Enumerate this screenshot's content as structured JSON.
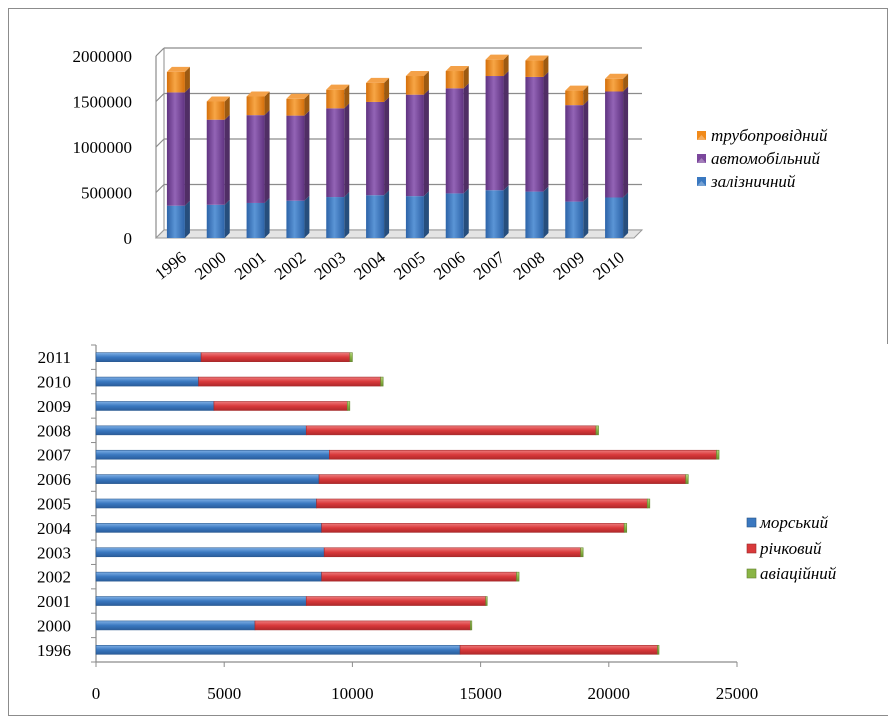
{
  "chart_data": [
    {
      "type": "bar",
      "orientation": "vertical",
      "stacked": true,
      "style": "3d",
      "categories": [
        "1996",
        "2000",
        "2001",
        "2002",
        "2003",
        "2004",
        "2005",
        "2006",
        "2007",
        "2008",
        "2009",
        "2010"
      ],
      "series": [
        {
          "name": "залізничний",
          "color": "#3a78c0",
          "values": [
            355000,
            365000,
            385000,
            410000,
            450000,
            470000,
            460000,
            490000,
            525000,
            510000,
            400000,
            445000
          ]
        },
        {
          "name": "автомобільний",
          "color": "#7b479c",
          "values": [
            1245000,
            935000,
            965000,
            935000,
            975000,
            1025000,
            1115000,
            1155000,
            1255000,
            1260000,
            1060000,
            1165000
          ]
        },
        {
          "name": "трубопровідний",
          "color": "#f18a1a",
          "values": [
            225000,
            200000,
            205000,
            185000,
            205000,
            210000,
            205000,
            190000,
            180000,
            180000,
            160000,
            140000
          ]
        }
      ],
      "yticks": [
        "0",
        "500000",
        "1000000",
        "1500000",
        "2000000"
      ],
      "ylim": [
        0,
        2000000
      ],
      "grid": true,
      "legend": "right",
      "legend_order": [
        "трубопровідний",
        "автомобільний",
        "залізничний"
      ]
    },
    {
      "type": "bar",
      "orientation": "horizontal",
      "stacked": true,
      "categories": [
        "2011",
        "2010",
        "2009",
        "2008",
        "2007",
        "2006",
        "2005",
        "2004",
        "2003",
        "2002",
        "2001",
        "2000",
        "1996"
      ],
      "series": [
        {
          "name": "морський",
          "color": "#3a78c0",
          "values": [
            4100,
            4000,
            4600,
            8200,
            9100,
            8700,
            8600,
            8800,
            8900,
            8800,
            8200,
            6200,
            14200
          ]
        },
        {
          "name": "річковий",
          "color": "#d9393b",
          "values": [
            5800,
            7100,
            5200,
            11300,
            15100,
            14300,
            12900,
            11800,
            10000,
            7600,
            7000,
            8400,
            7700
          ]
        },
        {
          "name": "авіаційний",
          "color": "#8ab545",
          "values": [
            100,
            100,
            100,
            100,
            100,
            100,
            100,
            100,
            100,
            100,
            50,
            50,
            50
          ]
        }
      ],
      "xticks": [
        "0",
        "5000",
        "10000",
        "15000",
        "20000",
        "25000"
      ],
      "xlim": [
        0,
        25000
      ],
      "grid": false,
      "legend": "right",
      "legend_order": [
        "морський",
        "річковий",
        "авіаційний"
      ]
    }
  ]
}
